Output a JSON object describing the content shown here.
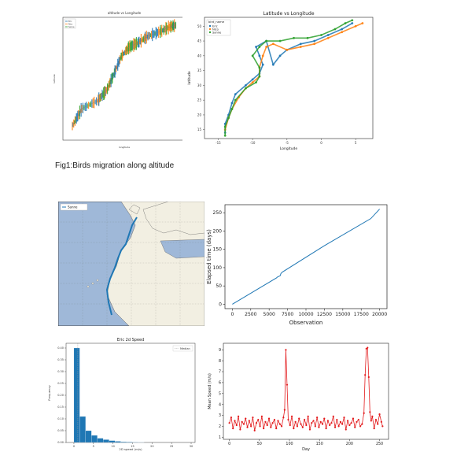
{
  "caption": "Fig1:Birds migration along altitude",
  "colors": {
    "eric": "#1f77b4",
    "nico": "#ff7f0e",
    "sanne": "#2ca02c",
    "red": "#e31a1c",
    "land": "#f2efe2",
    "sea": "#9fb8d8"
  },
  "chart_data": [
    {
      "type": "line",
      "title": "altitude vs Longitude",
      "xlabel": "longitude",
      "ylabel": "latitude",
      "legend": [
        "Eric",
        "Nico",
        "Sanne"
      ],
      "legend_position": "top-left"
    },
    {
      "type": "scatter",
      "title": "Latitude vs Longitude",
      "xlabel": "Longitude",
      "ylabel": "latitude",
      "legend_title": "bird_name",
      "legend": [
        "Eric",
        "Nico",
        "Sanne"
      ],
      "legend_position": "top-left",
      "x_ticks": [
        "-15",
        "-10",
        "-5",
        "0",
        "5"
      ],
      "y_ticks": [
        "15",
        "20",
        "25",
        "30",
        "35",
        "40",
        "45",
        "50"
      ],
      "xlim": [
        -17,
        7.5
      ],
      "ylim": [
        12,
        53
      ],
      "series": [
        {
          "name": "Eric",
          "x": [
            -14,
            -14,
            -13.5,
            -13,
            -12.5,
            -11,
            -10,
            -9,
            -8.5,
            -9,
            -9.5,
            -8,
            -7,
            -6,
            -5,
            -3,
            -1,
            1,
            3,
            4.5
          ],
          "y": [
            14,
            17,
            20,
            24,
            27,
            30,
            32,
            34,
            37,
            40,
            43,
            45,
            37,
            40,
            42,
            44,
            45,
            47,
            49,
            51
          ]
        },
        {
          "name": "Nico",
          "x": [
            -14,
            -13.5,
            -13,
            -12,
            -11,
            -10,
            -9,
            -9,
            -8.5,
            -8,
            -7,
            -5,
            -3,
            -1,
            1,
            3,
            5,
            6
          ],
          "y": [
            15,
            19,
            22,
            26,
            29,
            31,
            33,
            36,
            40,
            43,
            44,
            42,
            43,
            44,
            46,
            48,
            50,
            51
          ]
        },
        {
          "name": "Sanne",
          "x": [
            -14,
            -14,
            -13.5,
            -13,
            -12.5,
            -11,
            -9.5,
            -9,
            -9,
            -10,
            -9,
            -8,
            -6,
            -4,
            -2,
            0,
            2,
            3.5,
            4.5
          ],
          "y": [
            13,
            16,
            19,
            22,
            25,
            29,
            31,
            33,
            36,
            40,
            43,
            45,
            45,
            46,
            46,
            47,
            49,
            51,
            52
          ]
        }
      ]
    },
    {
      "type": "map",
      "legend": [
        "Sanne"
      ],
      "legend_position": "top-left"
    },
    {
      "type": "line",
      "xlabel": "Observation",
      "ylabel": "Elapsed time (days)",
      "x_ticks": [
        "0",
        "2500",
        "5000",
        "7500",
        "10000",
        "12500",
        "15000",
        "17500",
        "20000"
      ],
      "y_ticks": [
        "0",
        "50",
        "100",
        "150",
        "200",
        "250"
      ],
      "xlim": [
        -1000,
        21000
      ],
      "ylim": [
        -12,
        272
      ],
      "series": [
        {
          "x": [
            0,
            6000,
            6100,
            6500,
            6600,
            6800,
            12500,
            18800,
            20000
          ],
          "y": [
            0,
            72,
            74,
            78,
            84,
            88,
            160,
            234,
            260
          ]
        }
      ]
    },
    {
      "type": "bar",
      "title": "Eric 2d Speed",
      "xlabel": "2D speed (m/s)",
      "ylabel": "Frequency",
      "legend": [
        "Median"
      ],
      "legend_position": "top-right",
      "median": 1.0,
      "x_ticks": [
        "0",
        "5",
        "10",
        "15",
        "20",
        "25",
        "30"
      ],
      "y_ticks": [
        "0.00",
        "0.05",
        "0.10",
        "0.15",
        "0.20",
        "0.25",
        "0.30",
        "0.35",
        "0.40"
      ],
      "xlim": [
        -2,
        31
      ],
      "ylim": [
        0,
        0.42
      ],
      "bin_edges": [
        0,
        1.5,
        3,
        4.5,
        6,
        7.5,
        9,
        10.5,
        12,
        13.5,
        15,
        16.5,
        18
      ],
      "values": [
        0.4,
        0.11,
        0.05,
        0.03,
        0.018,
        0.012,
        0.008,
        0.005,
        0.003,
        0.002,
        0.0015,
        0.001
      ]
    },
    {
      "type": "line",
      "xlabel": "Day",
      "ylabel": "Mean Speed (m/s)",
      "x_ticks": [
        "0",
        "50",
        "100",
        "150",
        "200",
        "250"
      ],
      "y_ticks": [
        "1",
        "2",
        "3",
        "4",
        "5",
        "6",
        "7",
        "8",
        "9"
      ],
      "xlim": [
        -10,
        265
      ],
      "ylim": [
        0.8,
        9.6
      ],
      "series": [
        {
          "x": [
            0,
            3,
            6,
            9,
            12,
            15,
            18,
            21,
            24,
            27,
            30,
            33,
            36,
            39,
            42,
            45,
            48,
            51,
            54,
            57,
            60,
            63,
            66,
            69,
            72,
            75,
            78,
            81,
            84,
            87,
            90,
            92,
            94,
            96,
            98,
            101,
            104,
            107,
            110,
            113,
            116,
            119,
            122,
            125,
            128,
            131,
            134,
            137,
            140,
            143,
            146,
            149,
            152,
            155,
            158,
            161,
            164,
            167,
            170,
            173,
            176,
            179,
            182,
            185,
            188,
            191,
            194,
            197,
            200,
            203,
            206,
            209,
            212,
            215,
            218,
            221,
            224,
            226,
            228,
            230,
            232,
            234,
            236,
            238,
            241,
            244,
            247,
            250,
            253,
            255
          ],
          "y": [
            2.3,
            2.8,
            1.8,
            2.5,
            2.1,
            2.9,
            1.7,
            2.4,
            2.2,
            2.7,
            1.9,
            2.5,
            2.0,
            2.8,
            1.6,
            2.3,
            2.6,
            2.0,
            2.9,
            1.8,
            2.4,
            2.1,
            2.7,
            1.9,
            2.3,
            2.6,
            1.8,
            2.5,
            2.2,
            2.0,
            2.8,
            3.5,
            9.0,
            5.8,
            2.6,
            2.1,
            2.9,
            1.8,
            2.4,
            2.0,
            2.7,
            2.2,
            1.9,
            2.6,
            2.1,
            2.9,
            1.7,
            2.3,
            2.5,
            2.0,
            2.8,
            1.9,
            2.4,
            2.2,
            2.7,
            1.8,
            2.5,
            2.1,
            2.3,
            2.9,
            1.9,
            2.6,
            2.0,
            2.4,
            2.2,
            2.8,
            1.7,
            2.5,
            2.1,
            2.3,
            2.7,
            1.9,
            2.4,
            2.6,
            2.0,
            2.2,
            3.2,
            6.7,
            9.1,
            9.2,
            6.5,
            3.3,
            2.5,
            2.9,
            1.8,
            2.6,
            2.2,
            3.1,
            2.4,
            2.0
          ]
        }
      ]
    }
  ]
}
